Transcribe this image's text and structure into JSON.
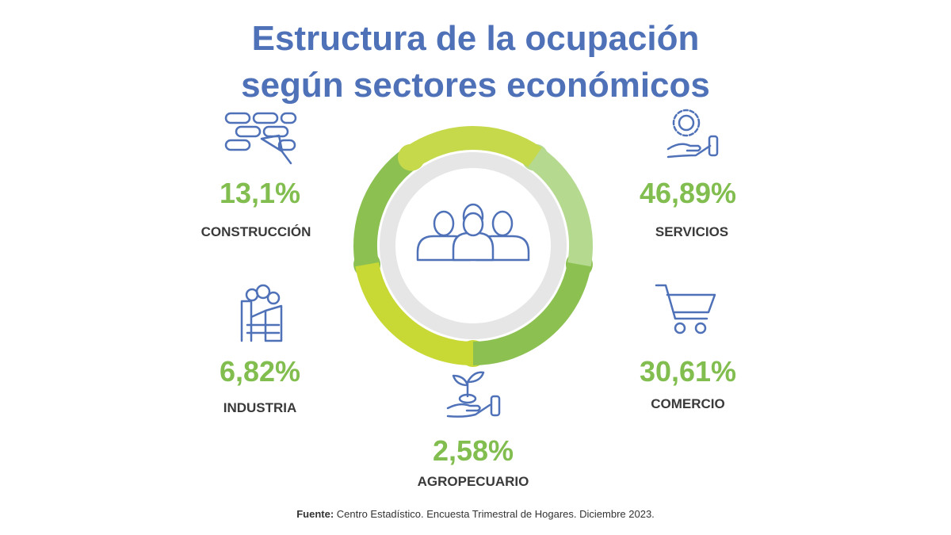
{
  "header": {
    "title_lines": [
      "Estructura de la ocupación",
      "según sectores económicos"
    ]
  },
  "sectors": [
    {
      "percent": "13,1%",
      "label": "CONSTRUCCIÓN"
    },
    {
      "percent": "46,89%",
      "label": "SERVICIOS"
    },
    {
      "percent": "6,82%",
      "label": "INDUSTRIA"
    },
    {
      "percent": "30,61%",
      "label": "COMERCIO"
    },
    {
      "percent": "2,58%",
      "label": "AGROPECUARIO"
    }
  ],
  "source": {
    "label": "Fuente:",
    "text": "Centro Estadístico. Encuesta Trimestral de Hogares. Diciembre 2023."
  }
}
